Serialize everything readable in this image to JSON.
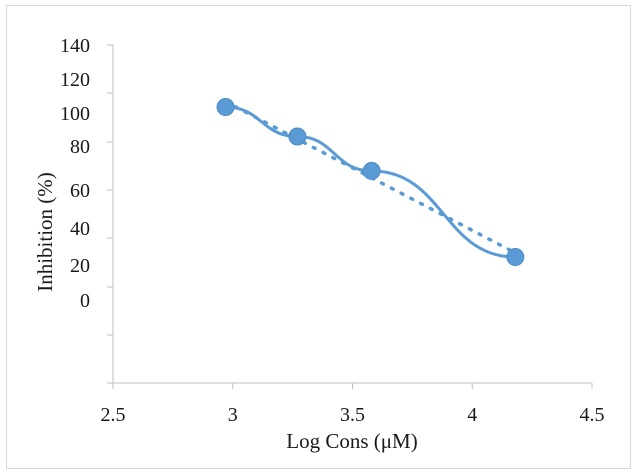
{
  "chart_data": {
    "type": "scatter",
    "xlabel": "Log Cons (μM)",
    "ylabel": "Inhibition (%)",
    "xlim": [
      2.5,
      4.5
    ],
    "ylim": [
      -40,
      140
    ],
    "x_ticks": [
      "2.5",
      "3",
      "3.5",
      "4",
      "4.5"
    ],
    "y_ticks": [
      "140",
      "120",
      "100",
      "80",
      "60",
      "40",
      "20",
      "0"
    ],
    "series": [
      {
        "marker": "circle",
        "color": "#5b9bd5",
        "x": [
          2.97,
          3.27,
          3.58,
          4.18
        ],
        "y": [
          106,
          94,
          80,
          45
        ]
      }
    ],
    "trendline": {
      "style": "dotted",
      "type": "linear",
      "color": "#5b9bd5"
    },
    "smooth_line": {
      "style": "solid",
      "color": "#5b9bd5"
    },
    "grid": false,
    "legend": "none"
  }
}
